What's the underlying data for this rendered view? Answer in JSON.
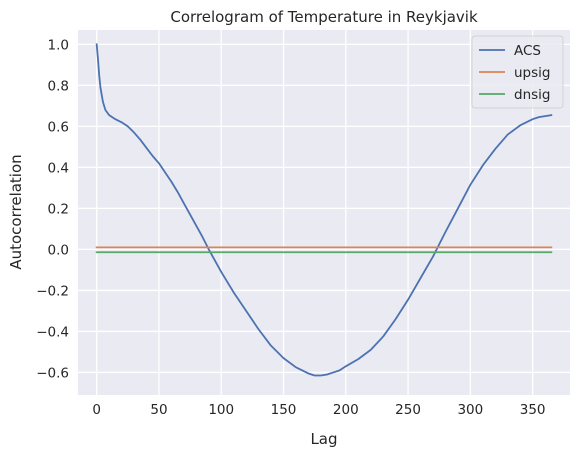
{
  "chart_data": {
    "type": "line",
    "title": "Correlogram of Temperature in Reykjavik",
    "xlabel": "Lag",
    "ylabel": "Autocorrelation",
    "xlim": [
      -15,
      380
    ],
    "ylim": [
      -0.71,
      1.07
    ],
    "xticks": [
      0,
      50,
      100,
      150,
      200,
      250,
      300,
      350
    ],
    "xtick_labels": [
      "0",
      "50",
      "100",
      "150",
      "200",
      "250",
      "300",
      "350"
    ],
    "yticks": [
      -0.6,
      -0.4,
      -0.2,
      0.0,
      0.2,
      0.4,
      0.6,
      0.8,
      1.0
    ],
    "ytick_labels": [
      "−0.6",
      "−0.4",
      "−0.2",
      "0.0",
      "0.2",
      "0.4",
      "0.6",
      "0.8",
      "1.0"
    ],
    "grid": true,
    "legend_position": "top-right",
    "series": [
      {
        "name": "ACS",
        "color": "#4c72b0",
        "x": [
          0,
          1,
          2,
          3,
          5,
          7,
          10,
          15,
          20,
          25,
          30,
          35,
          40,
          45,
          50,
          55,
          60,
          65,
          70,
          75,
          80,
          85,
          90,
          95,
          100,
          110,
          120,
          130,
          140,
          150,
          160,
          170,
          175,
          180,
          185,
          190,
          195,
          200,
          210,
          220,
          230,
          240,
          250,
          260,
          270,
          280,
          290,
          300,
          310,
          320,
          330,
          340,
          350,
          355,
          360,
          365
        ],
        "y": [
          1.0,
          0.93,
          0.85,
          0.79,
          0.72,
          0.68,
          0.655,
          0.635,
          0.62,
          0.6,
          0.57,
          0.535,
          0.495,
          0.455,
          0.42,
          0.375,
          0.33,
          0.28,
          0.225,
          0.17,
          0.115,
          0.06,
          0.0,
          -0.055,
          -0.11,
          -0.21,
          -0.3,
          -0.39,
          -0.47,
          -0.53,
          -0.575,
          -0.605,
          -0.615,
          -0.615,
          -0.61,
          -0.6,
          -0.59,
          -0.57,
          -0.535,
          -0.49,
          -0.425,
          -0.34,
          -0.245,
          -0.14,
          -0.035,
          0.085,
          0.2,
          0.315,
          0.41,
          0.49,
          0.56,
          0.605,
          0.635,
          0.645,
          0.65,
          0.655
        ]
      },
      {
        "name": "upsig",
        "color": "#dd8452",
        "x": [
          0,
          365
        ],
        "y": [
          0.01,
          0.01
        ]
      },
      {
        "name": "dnsig",
        "color": "#55a868",
        "x": [
          0,
          365
        ],
        "y": [
          -0.014,
          -0.014
        ]
      }
    ]
  }
}
